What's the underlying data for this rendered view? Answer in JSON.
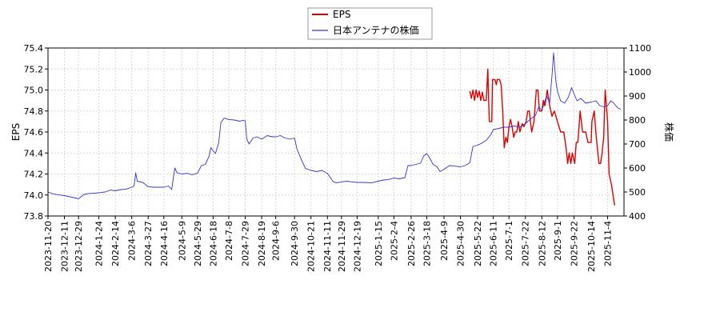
{
  "chart_data": {
    "type": "line",
    "legend": {
      "placement": "top-center",
      "entries": [
        "EPS",
        "日本アンテナの株価"
      ]
    },
    "y_left": {
      "label": "EPS",
      "range": [
        73.8,
        75.4
      ],
      "ticks": [
        "73.8",
        "74.0",
        "74.2",
        "74.4",
        "74.6",
        "74.8",
        "75.0",
        "75.2",
        "75.4"
      ]
    },
    "y_right": {
      "label": "株価",
      "range": [
        400,
        1100
      ],
      "ticks": [
        "400",
        "500",
        "600",
        "700",
        "800",
        "900",
        "1000",
        "1100"
      ]
    },
    "x": {
      "range": [
        "2023-11-20",
        "2025-11-25"
      ],
      "ticks": [
        "2023-11-20",
        "2023-12-11",
        "2023-12-29",
        "2024-1-24",
        "2024-2-14",
        "2024-3-6",
        "2024-3-27",
        "2024-4-16",
        "2024-5-9",
        "2024-5-29",
        "2024-6-18",
        "2024-7-8",
        "2024-7-29",
        "2024-8-19",
        "2024-9-6",
        "2024-9-30",
        "2024-10-21",
        "2024-11-11",
        "2024-11-29",
        "2024-12-19",
        "2025-1-15",
        "2025-2-4",
        "2025-2-26",
        "2025-3-18",
        "2025-4-9",
        "2025-4-30",
        "2025-5-22",
        "2025-6-11",
        "2025-7-1",
        "2025-7-22",
        "2025-8-12",
        "2025-9-1",
        "2025-9-22",
        "2025-10-14",
        "2025-11-4"
      ]
    },
    "grid": true,
    "series": [
      {
        "name": "EPS",
        "axis": "left",
        "color": "#dd0000",
        "points": [
          [
            "2025-5-12",
            74.99
          ],
          [
            "2025-5-14",
            74.92
          ],
          [
            "2025-5-16",
            75.0
          ],
          [
            "2025-5-18",
            74.9
          ],
          [
            "2025-5-20",
            75.0
          ],
          [
            "2025-5-22",
            74.93
          ],
          [
            "2025-5-24",
            74.99
          ],
          [
            "2025-5-26",
            74.9
          ],
          [
            "2025-5-28",
            74.98
          ],
          [
            "2025-5-30",
            74.9
          ],
          [
            "2025-6-2",
            74.9
          ],
          [
            "2025-6-4",
            75.2
          ],
          [
            "2025-6-5",
            74.9
          ],
          [
            "2025-6-6",
            74.7
          ],
          [
            "2025-6-9",
            74.7
          ],
          [
            "2025-6-10",
            75.1
          ],
          [
            "2025-6-13",
            75.1
          ],
          [
            "2025-6-15",
            75.05
          ],
          [
            "2025-6-16",
            75.1
          ],
          [
            "2025-6-19",
            75.1
          ],
          [
            "2025-6-21",
            75.05
          ],
          [
            "2025-6-23",
            74.8
          ],
          [
            "2025-6-25",
            74.45
          ],
          [
            "2025-6-27",
            74.55
          ],
          [
            "2025-6-29",
            74.5
          ],
          [
            "2025-7-1",
            74.65
          ],
          [
            "2025-7-3",
            74.72
          ],
          [
            "2025-7-5",
            74.65
          ],
          [
            "2025-7-7",
            74.55
          ],
          [
            "2025-7-9",
            74.6
          ],
          [
            "2025-7-11",
            74.6
          ],
          [
            "2025-7-13",
            74.7
          ],
          [
            "2025-7-15",
            74.6
          ],
          [
            "2025-7-18",
            74.68
          ],
          [
            "2025-7-20",
            74.65
          ],
          [
            "2025-7-23",
            74.7
          ],
          [
            "2025-7-25",
            74.8
          ],
          [
            "2025-7-27",
            74.8
          ],
          [
            "2025-7-30",
            74.6
          ],
          [
            "2025-8-2",
            74.7
          ],
          [
            "2025-8-5",
            75.0
          ],
          [
            "2025-8-7",
            75.0
          ],
          [
            "2025-8-9",
            74.8
          ],
          [
            "2025-8-12",
            74.8
          ],
          [
            "2025-8-14",
            74.9
          ],
          [
            "2025-8-16",
            74.85
          ],
          [
            "2025-8-19",
            75.0
          ],
          [
            "2025-8-22",
            74.85
          ],
          [
            "2025-8-25",
            74.75
          ],
          [
            "2025-8-28",
            74.8
          ],
          [
            "2025-9-1",
            74.7
          ],
          [
            "2025-9-5",
            74.6
          ],
          [
            "2025-9-9",
            74.6
          ],
          [
            "2025-9-12",
            74.45
          ],
          [
            "2025-9-14",
            74.3
          ],
          [
            "2025-9-16",
            74.4
          ],
          [
            "2025-9-18",
            74.3
          ],
          [
            "2025-9-20",
            74.4
          ],
          [
            "2025-9-23",
            74.3
          ],
          [
            "2025-9-25",
            74.5
          ],
          [
            "2025-9-27",
            74.5
          ],
          [
            "2025-9-30",
            74.8
          ],
          [
            "2025-10-3",
            74.6
          ],
          [
            "2025-10-7",
            74.6
          ],
          [
            "2025-10-10",
            74.5
          ],
          [
            "2025-10-14",
            74.5
          ],
          [
            "2025-10-15",
            74.7
          ],
          [
            "2025-10-18",
            74.8
          ],
          [
            "2025-10-20",
            74.6
          ],
          [
            "2025-10-22",
            74.45
          ],
          [
            "2025-10-24",
            74.3
          ],
          [
            "2025-10-26",
            74.3
          ],
          [
            "2025-10-28",
            74.4
          ],
          [
            "2025-10-30",
            74.55
          ],
          [
            "2025-11-1",
            75.0
          ],
          [
            "2025-11-4",
            74.7
          ],
          [
            "2025-11-6",
            74.2
          ],
          [
            "2025-11-9",
            74.1
          ],
          [
            "2025-11-11",
            74.0
          ],
          [
            "2025-11-13",
            73.9
          ]
        ]
      },
      {
        "name": "日本アンテナの株価",
        "axis": "right",
        "color": "#3333cc",
        "points": [
          [
            "2023-11-20",
            500
          ],
          [
            "2023-11-27",
            492
          ],
          [
            "2023-12-4",
            488
          ],
          [
            "2023-12-11",
            485
          ],
          [
            "2023-12-18",
            480
          ],
          [
            "2023-12-25",
            475
          ],
          [
            "2023-12-29",
            472
          ],
          [
            "2024-1-5",
            490
          ],
          [
            "2024-1-12",
            494
          ],
          [
            "2024-1-19",
            495
          ],
          [
            "2024-1-24",
            497
          ],
          [
            "2024-2-1",
            500
          ],
          [
            "2024-2-8",
            508
          ],
          [
            "2024-2-14",
            505
          ],
          [
            "2024-2-21",
            510
          ],
          [
            "2024-2-28",
            512
          ],
          [
            "2024-3-6",
            520
          ],
          [
            "2024-3-9",
            525
          ],
          [
            "2024-3-11",
            580
          ],
          [
            "2024-3-13",
            545
          ],
          [
            "2024-3-20",
            540
          ],
          [
            "2024-3-27",
            522
          ],
          [
            "2024-4-3",
            520
          ],
          [
            "2024-4-10",
            520
          ],
          [
            "2024-4-16",
            520
          ],
          [
            "2024-4-22",
            525
          ],
          [
            "2024-4-26",
            510
          ],
          [
            "2024-4-30",
            600
          ],
          [
            "2024-5-3",
            580
          ],
          [
            "2024-5-9",
            575
          ],
          [
            "2024-5-16",
            578
          ],
          [
            "2024-5-22",
            572
          ],
          [
            "2024-5-29",
            578
          ],
          [
            "2024-6-3",
            610
          ],
          [
            "2024-6-8",
            615
          ],
          [
            "2024-6-13",
            650
          ],
          [
            "2024-6-15",
            685
          ],
          [
            "2024-6-18",
            672
          ],
          [
            "2024-6-21",
            660
          ],
          [
            "2024-6-25",
            705
          ],
          [
            "2024-6-28",
            790
          ],
          [
            "2024-7-2",
            808
          ],
          [
            "2024-7-8",
            802
          ],
          [
            "2024-7-15",
            800
          ],
          [
            "2024-7-22",
            795
          ],
          [
            "2024-7-26",
            798
          ],
          [
            "2024-7-29",
            797
          ],
          [
            "2024-7-31",
            720
          ],
          [
            "2024-8-3",
            700
          ],
          [
            "2024-8-8",
            725
          ],
          [
            "2024-8-13",
            730
          ],
          [
            "2024-8-19",
            720
          ],
          [
            "2024-8-26",
            735
          ],
          [
            "2024-9-2",
            730
          ],
          [
            "2024-9-6",
            730
          ],
          [
            "2024-9-12",
            735
          ],
          [
            "2024-9-18",
            725
          ],
          [
            "2024-9-24",
            720
          ],
          [
            "2024-9-30",
            725
          ],
          [
            "2024-10-3",
            680
          ],
          [
            "2024-10-8",
            640
          ],
          [
            "2024-10-14",
            598
          ],
          [
            "2024-10-21",
            590
          ],
          [
            "2024-10-28",
            585
          ],
          [
            "2024-11-4",
            590
          ],
          [
            "2024-11-11",
            578
          ],
          [
            "2024-11-18",
            545
          ],
          [
            "2024-11-22",
            538
          ],
          [
            "2024-11-29",
            542
          ],
          [
            "2024-12-6",
            545
          ],
          [
            "2024-12-12",
            542
          ],
          [
            "2024-12-19",
            540
          ],
          [
            "2024-12-26",
            540
          ],
          [
            "2025-1-6",
            538
          ],
          [
            "2025-1-15",
            545
          ],
          [
            "2025-1-22",
            550
          ],
          [
            "2025-1-28",
            552
          ],
          [
            "2025-2-4",
            558
          ],
          [
            "2025-2-11",
            555
          ],
          [
            "2025-2-18",
            560
          ],
          [
            "2025-2-22",
            610
          ],
          [
            "2025-2-26",
            610
          ],
          [
            "2025-3-4",
            615
          ],
          [
            "2025-3-10",
            620
          ],
          [
            "2025-3-14",
            650
          ],
          [
            "2025-3-18",
            660
          ],
          [
            "2025-3-22",
            640
          ],
          [
            "2025-3-26",
            615
          ],
          [
            "2025-3-31",
            605
          ],
          [
            "2025-4-4",
            585
          ],
          [
            "2025-4-9",
            595
          ],
          [
            "2025-4-16",
            610
          ],
          [
            "2025-4-22",
            608
          ],
          [
            "2025-4-30",
            605
          ],
          [
            "2025-5-6",
            610
          ],
          [
            "2025-5-12",
            622
          ],
          [
            "2025-5-16",
            690
          ],
          [
            "2025-5-22",
            695
          ],
          [
            "2025-5-28",
            705
          ],
          [
            "2025-6-2",
            715
          ],
          [
            "2025-6-8",
            740
          ],
          [
            "2025-6-11",
            760
          ],
          [
            "2025-6-18",
            765
          ],
          [
            "2025-6-25",
            770
          ],
          [
            "2025-7-1",
            770
          ],
          [
            "2025-7-8",
            775
          ],
          [
            "2025-7-15",
            770
          ],
          [
            "2025-7-22",
            785
          ],
          [
            "2025-7-29",
            805
          ],
          [
            "2025-8-4",
            820
          ],
          [
            "2025-8-8",
            855
          ],
          [
            "2025-8-12",
            840
          ],
          [
            "2025-8-18",
            900
          ],
          [
            "2025-8-22",
            870
          ],
          [
            "2025-8-25",
            985
          ],
          [
            "2025-8-27",
            1080
          ],
          [
            "2025-8-30",
            960
          ],
          [
            "2025-9-1",
            920
          ],
          [
            "2025-9-5",
            880
          ],
          [
            "2025-9-10",
            870
          ],
          [
            "2025-9-15",
            895
          ],
          [
            "2025-9-19",
            935
          ],
          [
            "2025-9-22",
            910
          ],
          [
            "2025-9-26",
            880
          ],
          [
            "2025-10-1",
            890
          ],
          [
            "2025-10-7",
            870
          ],
          [
            "2025-10-14",
            875
          ],
          [
            "2025-10-20",
            880
          ],
          [
            "2025-10-25",
            860
          ],
          [
            "2025-10-30",
            855
          ],
          [
            "2025-11-4",
            860
          ],
          [
            "2025-11-8",
            880
          ],
          [
            "2025-11-12",
            870
          ],
          [
            "2025-11-17",
            850
          ],
          [
            "2025-11-21",
            845
          ]
        ]
      }
    ]
  }
}
